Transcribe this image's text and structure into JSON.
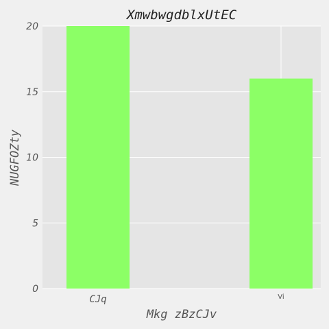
{
  "chart_data": {
    "type": "bar",
    "title": "XmwbwgdblxUtEC",
    "xlabel": "Mkg zBzCJv",
    "ylabel": "NUGFOZty",
    "categories": [
      "CJq",
      "Vi"
    ],
    "values": [
      20,
      16
    ],
    "ylim": [
      0,
      20
    ],
    "yticks": [
      "0",
      "5",
      "10",
      "15",
      "20"
    ],
    "grid": true,
    "colors": {
      "bar": "#8cff66",
      "plot_bg": "#e5e5e5",
      "figure_bg": "#f0f0f0",
      "grid": "#ffffff"
    }
  }
}
